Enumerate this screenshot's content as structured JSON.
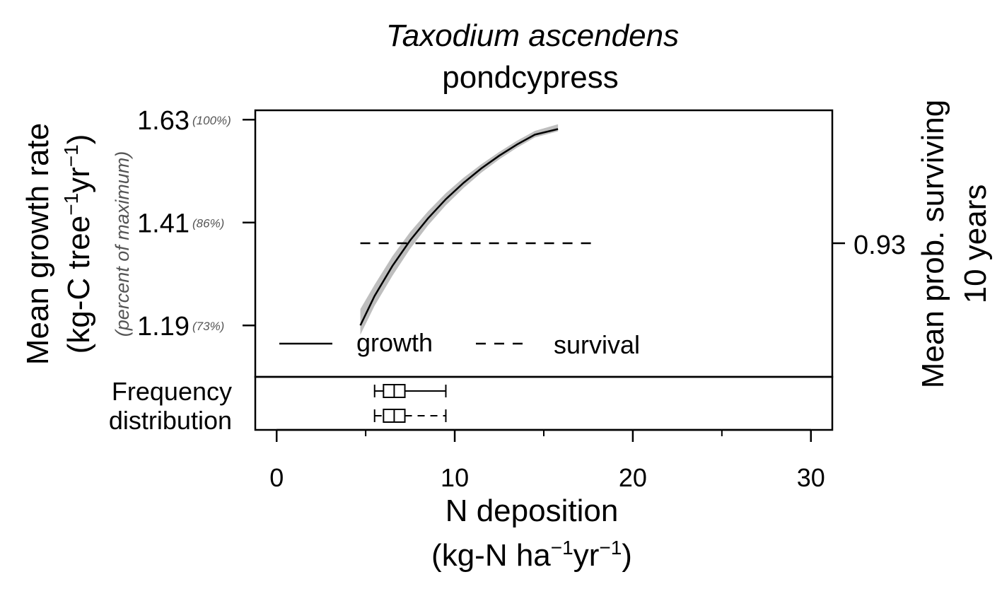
{
  "title": {
    "species": "Taxodium ascendens",
    "common": "pondcypress"
  },
  "y_left": {
    "label_line1": "Mean growth rate",
    "label_line2_prefix": "(kg-C tree",
    "label_line2_sup1": "−1",
    "label_line2_mid": "yr",
    "label_line2_sup2": "−1",
    "label_line2_suffix": ")",
    "sublabel": "(percent of maximum)",
    "ticks": [
      {
        "value": 1.63,
        "label": "1.63",
        "pct": "(100%)"
      },
      {
        "value": 1.41,
        "label": "1.41",
        "pct": "(86%)"
      },
      {
        "value": 1.19,
        "label": "1.19",
        "pct": "(73%)"
      }
    ]
  },
  "y_right": {
    "label_line1": "Mean prob. surviving",
    "label_line2": "10 years",
    "tick_label": "0.93"
  },
  "x_axis": {
    "label_line1": "N deposition",
    "label_line2_prefix": "(kg-N ha",
    "label_line2_sup1": "−1",
    "label_line2_mid": "yr",
    "label_line2_sup2": "−1",
    "label_line2_suffix": ")",
    "ticks": [
      {
        "value": 0,
        "label": "0"
      },
      {
        "value": 10,
        "label": "10"
      },
      {
        "value": 20,
        "label": "20"
      },
      {
        "value": 30,
        "label": "30"
      }
    ],
    "minor_ticks": [
      5,
      15,
      25
    ]
  },
  "freq_label": {
    "line1": "Frequency",
    "line2": "distribution"
  },
  "legend": {
    "growth": "growth",
    "survival": "survival"
  },
  "chart_data": {
    "type": "line",
    "xlim": [
      -1.2,
      31.2
    ],
    "ylim_growth": [
      1.08,
      1.65
    ],
    "series": [
      {
        "name": "growth",
        "style": "solid",
        "x": [
          4.7,
          5.5,
          6.5,
          7.5,
          8.5,
          9.5,
          10.5,
          11.5,
          12.5,
          13.5,
          14.5,
          15.8
        ],
        "y": [
          1.19,
          1.253,
          1.317,
          1.372,
          1.419,
          1.46,
          1.495,
          1.526,
          1.553,
          1.577,
          1.598,
          1.61
        ],
        "ci_lower": [
          1.17,
          1.232,
          1.296,
          1.354,
          1.404,
          1.447,
          1.484,
          1.517,
          1.545,
          1.57,
          1.592,
          1.605
        ],
        "ci_upper": [
          1.225,
          1.277,
          1.338,
          1.39,
          1.434,
          1.473,
          1.506,
          1.535,
          1.561,
          1.585,
          1.606,
          1.62
        ]
      },
      {
        "name": "survival",
        "style": "dashed",
        "axis": "right",
        "x": [
          4.7,
          18.0
        ],
        "y": [
          0.93,
          0.93
        ]
      }
    ],
    "boxplots": [
      {
        "series": "growth",
        "min": 5.5,
        "q1": 6.0,
        "median": 6.6,
        "q3": 7.2,
        "max": 9.5
      },
      {
        "series": "survival",
        "min": 5.5,
        "q1": 6.0,
        "median": 6.6,
        "q3": 7.2,
        "max": 9.5
      }
    ]
  }
}
